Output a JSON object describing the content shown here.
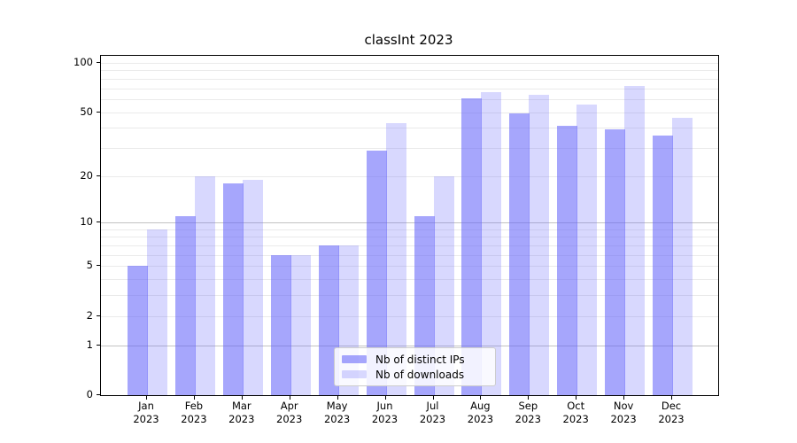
{
  "title": "classInt 2023",
  "legend": {
    "items": [
      {
        "label": "Nb of distinct IPs",
        "color": "rgba(98,98,250,0.57)"
      },
      {
        "label": "Nb of downloads",
        "color": "rgba(98,98,250,0.25)"
      }
    ]
  },
  "axes": {
    "ytick_labels": [
      "100",
      "50",
      "20",
      "10",
      "5",
      "2",
      "1",
      "0"
    ],
    "xtick_year": "2023"
  },
  "chart_data": {
    "type": "bar",
    "title": "classInt 2023",
    "categories": [
      "Jan",
      "Feb",
      "Mar",
      "Apr",
      "May",
      "Jun",
      "Jul",
      "Aug",
      "Sep",
      "Oct",
      "Nov",
      "Dec"
    ],
    "category_year": "2023",
    "series": [
      {
        "name": "Nb of distinct IPs",
        "color": "rgba(98,98,250,0.57)",
        "values": [
          5,
          11,
          18,
          6,
          7,
          29,
          11,
          61,
          49,
          41,
          39,
          36
        ]
      },
      {
        "name": "Nb of downloads",
        "color": "rgba(98,98,250,0.25)",
        "values": [
          9,
          20,
          19,
          6,
          7,
          43,
          20,
          66,
          64,
          56,
          72,
          46
        ]
      }
    ],
    "xlabel": "",
    "ylabel": "",
    "yscale": "log1p",
    "ylim": [
      0,
      110.4
    ],
    "yticks": [
      0,
      1,
      2,
      5,
      10,
      20,
      50,
      100
    ],
    "grid": {
      "major_values": [
        1,
        10
      ],
      "minor_values": [
        2,
        3,
        4,
        5,
        6,
        7,
        8,
        9,
        20,
        30,
        40,
        50,
        60,
        70,
        80,
        90,
        100
      ],
      "major_color": "#c3c3c3",
      "minor_color": "#eaeaea"
    },
    "legend_position": "lower center inside plot"
  }
}
